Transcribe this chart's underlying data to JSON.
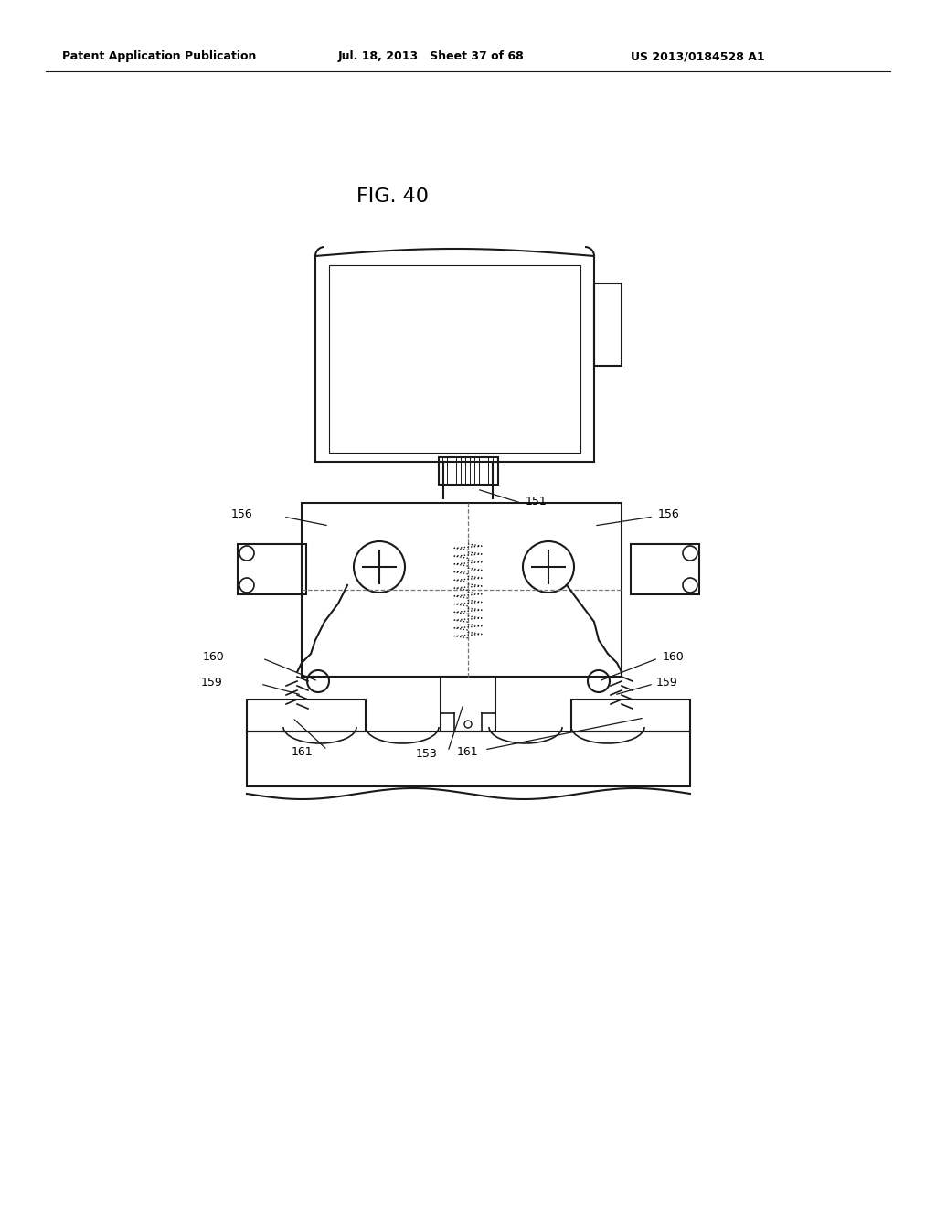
{
  "bg_color": "#ffffff",
  "header_left": "Patent Application Publication",
  "header_mid": "Jul. 18, 2013   Sheet 37 of 68",
  "header_right": "US 2013/0184528 A1",
  "fig_label": "FIG. 40",
  "labels": {
    "156_left": "156",
    "156_right": "156",
    "151": "151",
    "160_left": "160",
    "160_right": "160",
    "159_left": "159",
    "159_right": "159",
    "161_left": "161",
    "161_right": "161",
    "153": "153"
  },
  "line_color": "#1a1a1a",
  "text_color": "#000000"
}
